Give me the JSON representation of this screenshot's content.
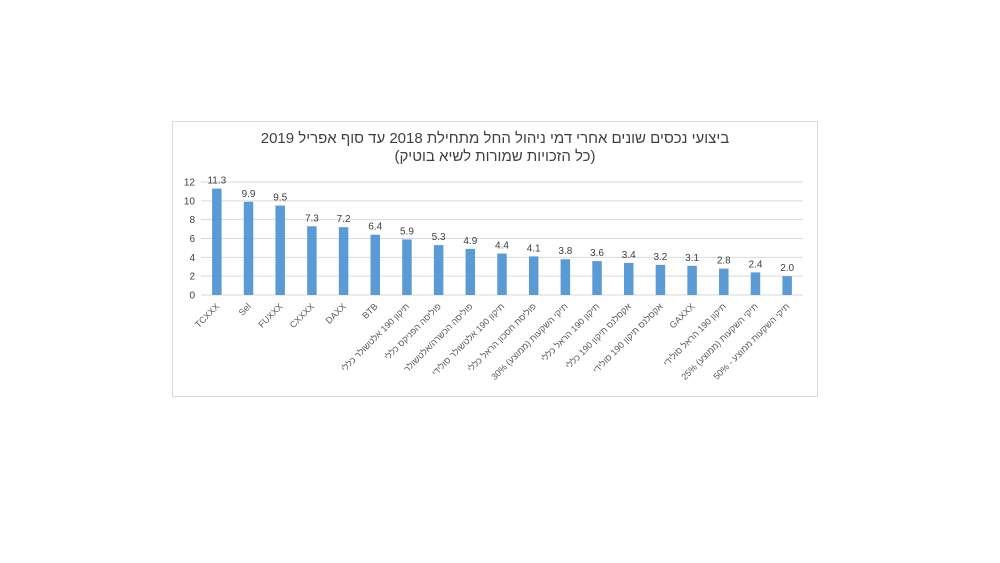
{
  "chart_data": {
    "type": "bar",
    "title": "ביצועי נכסים שונים אחרי דמי ניהול החל מתחילת 2018 עד סוף אפריל 2019",
    "subtitle": "(כל הזכויות שמורות לשיא בוטיק)",
    "xlabel": "",
    "ylabel": "",
    "ylim": [
      0,
      12
    ],
    "yticks": [
      0,
      2,
      4,
      6,
      8,
      10,
      12
    ],
    "grid": true,
    "bar_color": "#5b9bd5",
    "categories": [
      "TCXXX",
      "Sel",
      "FUXXX",
      "CXXXX",
      "DAXX",
      "BTB",
      "תיקון 190 אלטשולר כללי",
      "פוליסה הפניקס כללי",
      "פוליסה הכשרה/אלטשולר",
      "תיקון 190 אלטשולר סולידי",
      "פוליסת חסכון הראל כללי",
      "תיקי השקעות (ממוצע) 30%",
      "תיקון 190 הראל כללי",
      "אקסלנס תיקון 190 כללי",
      "אקסלנס תיקון 190 סולידי",
      "GAXXX",
      "תיקון 190 הראל סולידי",
      "תיקי השקעות (ממוצע) 25%",
      "תיקי השקעות ממוצע - 50%"
    ],
    "values": [
      11.3,
      9.9,
      9.5,
      7.3,
      7.2,
      6.4,
      5.9,
      5.3,
      4.9,
      4.4,
      4.1,
      3.8,
      3.6,
      3.4,
      3.2,
      3.1,
      2.8,
      2.4,
      2.0
    ],
    "value_labels": [
      "11.3",
      "9.9",
      "9.5",
      "7.3",
      "7.2",
      "6.4",
      "5.9",
      "5.3",
      "4.9",
      "4.4",
      "4.1",
      "3.8",
      "3.6",
      "3.4",
      "3.2",
      "3.1",
      "2.8",
      "2.4",
      "2.0"
    ]
  }
}
